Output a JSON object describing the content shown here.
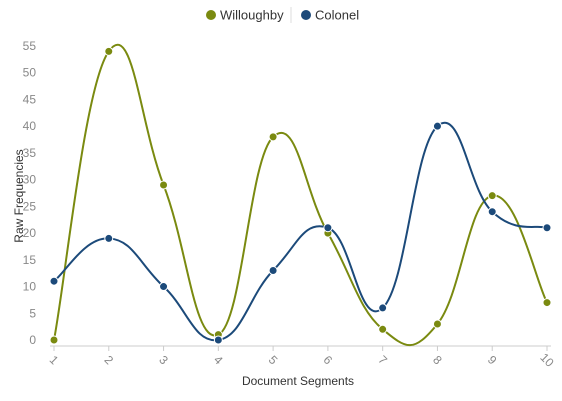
{
  "chart_data": {
    "type": "line",
    "title": "",
    "xlabel": "Document Segments",
    "ylabel": "Raw Frequencies",
    "categories": [
      "1",
      "2",
      "3",
      "4",
      "5",
      "6",
      "7",
      "8",
      "9",
      "10"
    ],
    "ylim": [
      0,
      55
    ],
    "yticks": [
      0,
      5,
      10,
      15,
      20,
      25,
      30,
      35,
      40,
      45,
      50,
      55
    ],
    "grid": false,
    "legend_position": "top",
    "series": [
      {
        "name": "Willoughby",
        "color": "#7a8a10",
        "values": [
          0,
          54,
          29,
          1,
          38,
          20,
          2,
          3,
          27,
          7
        ]
      },
      {
        "name": "Colonel",
        "color": "#1c4a7a",
        "values": [
          11,
          19,
          10,
          0,
          13,
          21,
          6,
          40,
          24,
          21
        ]
      }
    ]
  }
}
